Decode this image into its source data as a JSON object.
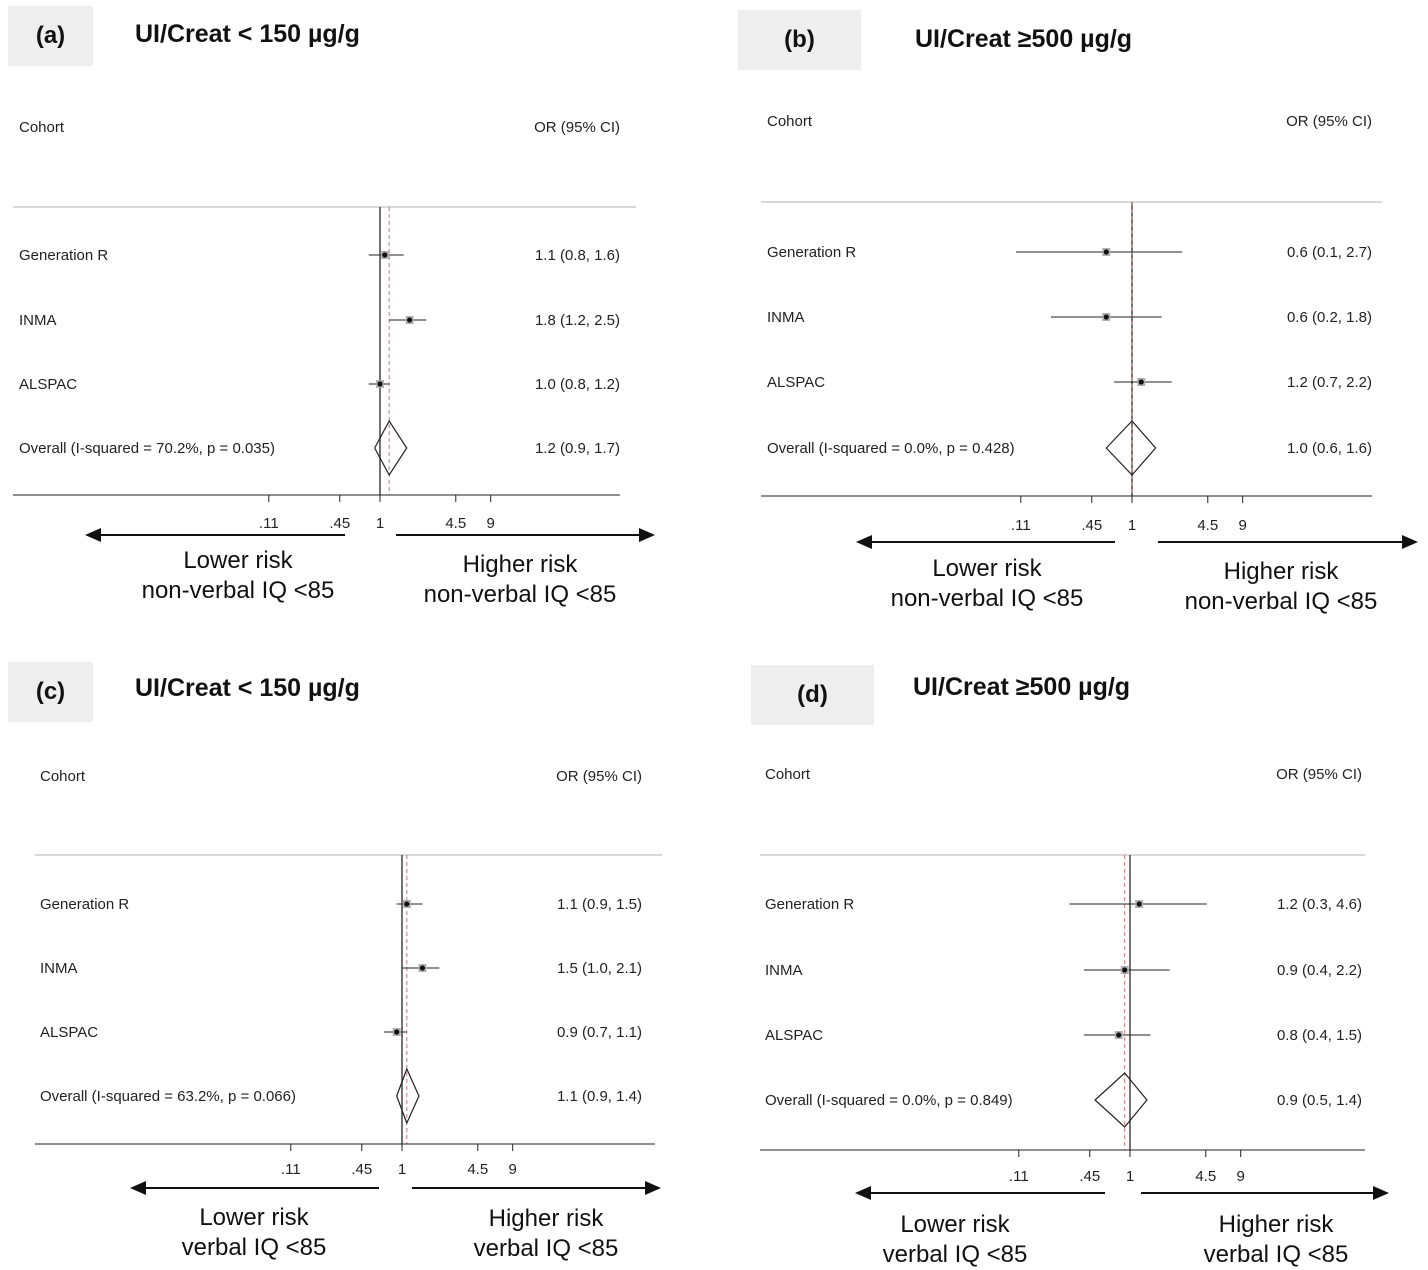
{
  "colors": {
    "null_line": "#444444",
    "pooled_line": "#c77a7a",
    "marker": "#111111",
    "weight_box": "#b0b0b0"
  },
  "chart_data": [
    {
      "panel_label": "(a)",
      "title": "UI/Creat < 150 µg/g",
      "type": "forest",
      "col_left_header": "Cohort",
      "col_right_header": "OR (95% CI)",
      "ticks": [
        ".11",
        ".45",
        "1",
        "4.5",
        "9"
      ],
      "tick_values": [
        0.11,
        0.45,
        1,
        4.5,
        9
      ],
      "x_scale": "log",
      "xlim": [
        0.006,
        30
      ],
      "null_value": 1,
      "rows": [
        {
          "label": "Generation R",
          "or": 1.1,
          "lo": 0.8,
          "hi": 1.6,
          "ci_text": "1.1 (0.8, 1.6)"
        },
        {
          "label": "INMA",
          "or": 1.8,
          "lo": 1.2,
          "hi": 2.5,
          "ci_text": "1.8 (1.2, 2.5)"
        },
        {
          "label": "ALSPAC",
          "or": 1.0,
          "lo": 0.8,
          "hi": 1.2,
          "ci_text": "1.0 (0.8, 1.2)"
        }
      ],
      "overall": {
        "label": "Overall  (I-squared = 70.2%, p = 0.035)",
        "or": 1.2,
        "lo": 0.9,
        "hi": 1.7,
        "ci_text": "1.2 (0.9, 1.7)"
      },
      "lower_label": [
        "Lower risk",
        "non-verbal IQ <85"
      ],
      "higher_label": [
        "Higher risk",
        "non-verbal IQ <85"
      ]
    },
    {
      "panel_label": "(b)",
      "title": "UI/Creat ≥500 µg/g",
      "type": "forest",
      "col_left_header": "Cohort",
      "col_right_header": "OR (95% CI)",
      "ticks": [
        ".11",
        ".45",
        "1",
        "4.5",
        "9"
      ],
      "tick_values": [
        0.11,
        0.45,
        1,
        4.5,
        9
      ],
      "x_scale": "log",
      "xlim": [
        0.006,
        30
      ],
      "null_value": 1,
      "rows": [
        {
          "label": "Generation R",
          "or": 0.6,
          "lo": 0.1,
          "hi": 2.7,
          "ci_text": "0.6 (0.1, 2.7)"
        },
        {
          "label": "INMA",
          "or": 0.6,
          "lo": 0.2,
          "hi": 1.8,
          "ci_text": "0.6 (0.2, 1.8)"
        },
        {
          "label": "ALSPAC",
          "or": 1.2,
          "lo": 0.7,
          "hi": 2.2,
          "ci_text": "1.2 (0.7, 2.2)"
        }
      ],
      "overall": {
        "label": "Overall  (I-squared = 0.0%, p = 0.428)",
        "or": 1.0,
        "lo": 0.6,
        "hi": 1.6,
        "ci_text": "1.0 (0.6, 1.6)"
      },
      "lower_label": [
        "Lower risk",
        "non-verbal IQ <85"
      ],
      "higher_label": [
        "Higher risk",
        "non-verbal IQ <85"
      ]
    },
    {
      "panel_label": "(c)",
      "title": "UI/Creat < 150 µg/g",
      "type": "forest",
      "col_left_header": "Cohort",
      "col_right_header": "OR (95% CI)",
      "ticks": [
        ".11",
        ".45",
        "1",
        "4.5",
        "9"
      ],
      "tick_values": [
        0.11,
        0.45,
        1,
        4.5,
        9
      ],
      "x_scale": "log",
      "xlim": [
        0.006,
        30
      ],
      "null_value": 1,
      "rows": [
        {
          "label": "Generation R",
          "or": 1.1,
          "lo": 0.9,
          "hi": 1.5,
          "ci_text": "1.1 (0.9, 1.5)"
        },
        {
          "label": "INMA",
          "or": 1.5,
          "lo": 1.0,
          "hi": 2.1,
          "ci_text": "1.5 (1.0, 2.1)"
        },
        {
          "label": "ALSPAC",
          "or": 0.9,
          "lo": 0.7,
          "hi": 1.1,
          "ci_text": "0.9 (0.7, 1.1)"
        }
      ],
      "overall": {
        "label": "Overall  (I-squared = 63.2%, p = 0.066)",
        "or": 1.1,
        "lo": 0.9,
        "hi": 1.4,
        "ci_text": "1.1 (0.9, 1.4)"
      },
      "lower_label": [
        "Lower risk",
        "verbal IQ <85"
      ],
      "higher_label": [
        "Higher risk",
        "verbal IQ <85"
      ]
    },
    {
      "panel_label": "(d)",
      "title": "UI/Creat ≥500 µg/g",
      "type": "forest",
      "col_left_header": "Cohort",
      "col_right_header": "OR (95% CI)",
      "ticks": [
        ".11",
        ".45",
        "1",
        "4.5",
        "9"
      ],
      "tick_values": [
        0.11,
        0.45,
        1,
        4.5,
        9
      ],
      "x_scale": "log",
      "xlim": [
        0.006,
        30
      ],
      "null_value": 1,
      "rows": [
        {
          "label": "Generation R",
          "or": 1.2,
          "lo": 0.3,
          "hi": 4.6,
          "ci_text": "1.2 (0.3, 4.6)"
        },
        {
          "label": "INMA",
          "or": 0.9,
          "lo": 0.4,
          "hi": 2.2,
          "ci_text": "0.9 (0.4, 2.2)"
        },
        {
          "label": "ALSPAC",
          "or": 0.8,
          "lo": 0.4,
          "hi": 1.5,
          "ci_text": "0.8 (0.4, 1.5)"
        }
      ],
      "overall": {
        "label": "Overall  (I-squared = 0.0%, p = 0.849)",
        "or": 0.9,
        "lo": 0.5,
        "hi": 1.4,
        "ci_text": "0.9 (0.5, 1.4)"
      },
      "lower_label": [
        "Lower risk",
        "verbal IQ <85"
      ],
      "higher_label": [
        "Higher risk",
        "verbal IQ <85"
      ]
    }
  ]
}
